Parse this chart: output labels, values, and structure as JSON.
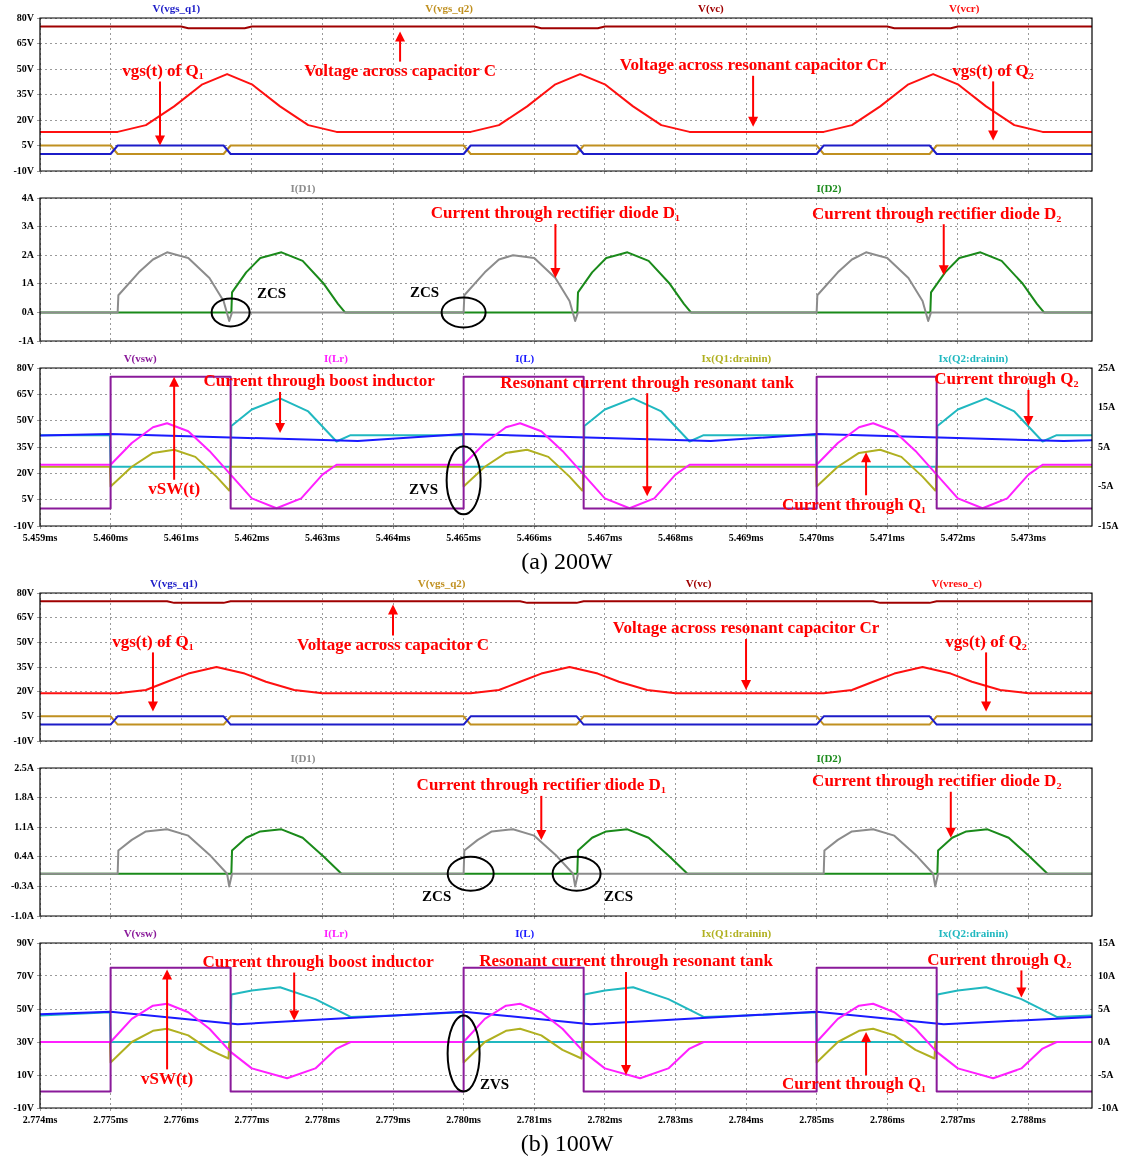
{
  "chart_data": [
    {
      "type": "line",
      "legend": "top",
      "grid": true,
      "tick_labels": "y",
      "xlim": [
        5.459,
        5.4739
      ],
      "xticks": [
        5.459,
        5.46,
        5.461,
        5.462,
        5.463,
        5.464,
        5.465,
        5.466,
        5.467,
        5.468,
        5.469,
        5.47,
        5.471,
        5.472,
        5.473
      ],
      "ylim": [
        -10,
        80
      ],
      "yticks": [
        {
          "value": -10,
          "label": "-10V"
        },
        {
          "value": 5,
          "label": "5V"
        },
        {
          "value": 20,
          "label": "20V"
        },
        {
          "value": 35,
          "label": "35V"
        },
        {
          "value": 50,
          "label": "50V"
        },
        {
          "value": 65,
          "label": "65V"
        },
        {
          "value": 80,
          "label": "80V"
        }
      ],
      "series": [
        {
          "name": "V(vgs_q1)",
          "color": "#1c1cc8",
          "x": [
            5.459,
            5.46,
            5.4601,
            5.4616,
            5.4617,
            5.465,
            5.4651,
            5.4666,
            5.4667,
            5.47,
            5.4701,
            5.4716,
            5.4717,
            5.4739
          ],
          "values": [
            0,
            0,
            5,
            5,
            0,
            0,
            5,
            5,
            0,
            0,
            5,
            5,
            0,
            0
          ]
        },
        {
          "name": "V(vgs_q2)",
          "color": "#c09020",
          "x": [
            5.459,
            5.46,
            5.4601,
            5.4616,
            5.4617,
            5.465,
            5.4651,
            5.4666,
            5.4667,
            5.47,
            5.4701,
            5.4716,
            5.4717,
            5.4739
          ],
          "values": [
            5,
            5,
            0,
            0,
            5,
            5,
            0,
            0,
            5,
            5,
            0,
            0,
            5,
            5
          ]
        },
        {
          "name": "V(vc)",
          "color": "#a00000",
          "x": [
            5.459,
            5.461,
            5.4611,
            5.4619,
            5.462,
            5.466,
            5.4661,
            5.4669,
            5.467,
            5.471,
            5.4711,
            5.4719,
            5.472,
            5.4739
          ],
          "values": [
            75,
            75,
            74,
            74,
            75,
            75,
            74,
            74,
            75,
            75,
            74,
            74,
            75,
            75
          ]
        },
        {
          "name": "V(vcr)",
          "color": "#ff1010",
          "x": [
            5.459,
            5.4601,
            5.4605,
            5.4609,
            5.4613,
            5.46165,
            5.462,
            5.4624,
            5.4628,
            5.4632,
            5.4651,
            5.4655,
            5.4659,
            5.4663,
            5.46665,
            5.467,
            5.4674,
            5.4678,
            5.4682,
            5.4701,
            5.4705,
            5.4709,
            5.4713,
            5.47165,
            5.472,
            5.4724,
            5.4728,
            5.4732,
            5.4739
          ],
          "values": [
            13,
            13,
            17,
            28,
            41,
            47,
            41,
            28,
            17,
            13,
            13,
            17,
            28,
            41,
            47,
            41,
            28,
            17,
            13,
            13,
            17,
            28,
            41,
            47,
            41,
            28,
            17,
            13,
            13
          ]
        }
      ],
      "annotations": [
        {
          "text": "vgs(t) of Q₁",
          "x": 5.4607,
          "y": 5
        },
        {
          "text": "Voltage across capacitor C",
          "x": 5.4641,
          "y": 72
        },
        {
          "text": "Voltage across resonant capacitor Cr",
          "x": 5.4691,
          "y": 16
        },
        {
          "text": "vgs(t) of Q₂",
          "x": 5.4725,
          "y": 8
        }
      ]
    },
    {
      "type": "line",
      "legend": "top",
      "grid": true,
      "tick_labels": "y",
      "xlim": [
        5.459,
        5.4739
      ],
      "xticks": [
        5.459,
        5.46,
        5.461,
        5.462,
        5.463,
        5.464,
        5.465,
        5.466,
        5.467,
        5.468,
        5.469,
        5.47,
        5.471,
        5.472,
        5.473
      ],
      "ylim": [
        -1,
        4
      ],
      "yticks": [
        {
          "value": -1,
          "label": "-1A"
        },
        {
          "value": 0,
          "label": "0A"
        },
        {
          "value": 1,
          "label": "1A"
        },
        {
          "value": 2,
          "label": "2A"
        },
        {
          "value": 3,
          "label": "3A"
        },
        {
          "value": 4,
          "label": "4A"
        }
      ],
      "series": [
        {
          "name": "I(D1)",
          "color": "#8c8c8c",
          "x": [
            5.459,
            5.4601,
            5.46011,
            5.4604,
            5.4606,
            5.4608,
            5.4611,
            5.4614,
            5.4616,
            5.46168,
            5.46172,
            5.465,
            5.46501,
            5.4653,
            5.4655,
            5.4657,
            5.466,
            5.4663,
            5.4665,
            5.46658,
            5.46662,
            5.47,
            5.47001,
            5.4703,
            5.4705,
            5.4707,
            5.471,
            5.4713,
            5.4715,
            5.47158,
            5.47162,
            5.4739
          ],
          "values": [
            0,
            0,
            0.6,
            1.4,
            1.85,
            2.1,
            1.9,
            1.2,
            0.4,
            -0.3,
            0,
            0,
            0.6,
            1.4,
            1.85,
            2,
            1.9,
            1.2,
            0.4,
            -0.3,
            0,
            0,
            0.6,
            1.4,
            1.85,
            2.1,
            1.9,
            1.2,
            0.4,
            -0.3,
            0,
            0
          ]
        },
        {
          "name": "I(D2)",
          "color": "#1a8a1a",
          "x": [
            5.459,
            5.46171,
            5.46172,
            5.46192,
            5.46212,
            5.46242,
            5.46272,
            5.46302,
            5.46322,
            5.46332,
            5.46661,
            5.46662,
            5.46682,
            5.46702,
            5.46732,
            5.46762,
            5.46792,
            5.46812,
            5.46822,
            5.47161,
            5.47162,
            5.47182,
            5.47202,
            5.47232,
            5.47262,
            5.47292,
            5.47312,
            5.47322,
            5.4739
          ],
          "values": [
            0,
            0,
            0.7,
            1.4,
            1.9,
            2.1,
            1.8,
            1,
            0.3,
            0,
            0,
            0.7,
            1.4,
            1.9,
            2.1,
            1.8,
            1,
            0.3,
            0,
            0,
            0.7,
            1.4,
            1.9,
            2.1,
            1.8,
            1,
            0.3,
            0,
            0
          ]
        }
      ],
      "annotations": [
        {
          "text": "Current through rectifier diode D₁",
          "x": 5.4663,
          "y": 1.2
        },
        {
          "text": "Current through rectifier diode D₂",
          "x": 5.4718,
          "y": 1.3
        },
        {
          "text": "ZCS",
          "x": 5.4617,
          "y": 0
        },
        {
          "text": "ZCS",
          "x": 5.465,
          "y": 0
        }
      ]
    },
    {
      "type": "line",
      "legend": "top",
      "grid": true,
      "xlim": [
        5.459,
        5.4739
      ],
      "xticks": [
        {
          "value": 5.459,
          "label": "5.459ms"
        },
        {
          "value": 5.46,
          "label": "5.460ms"
        },
        {
          "value": 5.461,
          "label": "5.461ms"
        },
        {
          "value": 5.462,
          "label": "5.462ms"
        },
        {
          "value": 5.463,
          "label": "5.463ms"
        },
        {
          "value": 5.464,
          "label": "5.464ms"
        },
        {
          "value": 5.465,
          "label": "5.465ms"
        },
        {
          "value": 5.466,
          "label": "5.466ms"
        },
        {
          "value": 5.467,
          "label": "5.467ms"
        },
        {
          "value": 5.468,
          "label": "5.468ms"
        },
        {
          "value": 5.469,
          "label": "5.469ms"
        },
        {
          "value": 5.47,
          "label": "5.470ms"
        },
        {
          "value": 5.471,
          "label": "5.471ms"
        },
        {
          "value": 5.472,
          "label": "5.472ms"
        },
        {
          "value": 5.473,
          "label": "5.473ms"
        }
      ],
      "ylim": [
        -10,
        80
      ],
      "yticks": [
        {
          "value": -10,
          "label": "-10V"
        },
        {
          "value": 5,
          "label": "5V"
        },
        {
          "value": 20,
          "label": "20V"
        },
        {
          "value": 35,
          "label": "35V"
        },
        {
          "value": 50,
          "label": "50V"
        },
        {
          "value": 65,
          "label": "65V"
        },
        {
          "value": 80,
          "label": "80V"
        }
      ],
      "y2lim": [
        -15,
        25
      ],
      "y2ticks": [
        {
          "value": -15,
          "label": "-15A"
        },
        {
          "value": -5,
          "label": "-5A"
        },
        {
          "value": 5,
          "label": "5A"
        },
        {
          "value": 15,
          "label": "15A"
        },
        {
          "value": 25,
          "label": "25A"
        }
      ],
      "series": [
        {
          "name": "V(vsw)",
          "color": "#8a1a9a",
          "x": [
            5.459,
            5.46,
            5.46,
            5.4617,
            5.4617,
            5.465,
            5.465,
            5.4667,
            5.4667,
            5.47,
            5.47,
            5.4717,
            5.4717,
            5.4739
          ],
          "values": [
            0,
            0,
            75,
            75,
            0,
            0,
            75,
            75,
            0,
            0,
            75,
            75,
            0,
            0
          ]
        },
        {
          "name": "I(Lr)",
          "color": "#ff20ff",
          "axis": "y2",
          "x": [
            5.459,
            5.46,
            5.4603,
            5.4606,
            5.4608,
            5.4611,
            5.4614,
            5.4617,
            5.462,
            5.46235,
            5.4627,
            5.463,
            5.4632,
            5.465,
            5.4653,
            5.4656,
            5.4658,
            5.4661,
            5.4664,
            5.4667,
            5.467,
            5.46735,
            5.4677,
            5.468,
            5.4682,
            5.47,
            5.4703,
            5.4706,
            5.4708,
            5.4711,
            5.4714,
            5.4717,
            5.472,
            5.47235,
            5.4727,
            5.473,
            5.4732,
            5.4739
          ],
          "values": [
            0.5,
            0.5,
            6,
            10,
            11,
            9,
            4,
            -2,
            -8,
            -10.5,
            -8,
            -2,
            0.5,
            0.5,
            6,
            10,
            11,
            9,
            4,
            -2,
            -8,
            -10.5,
            -8,
            -2,
            0.5,
            0.5,
            6,
            10,
            11,
            9,
            4,
            -2,
            -8,
            -10.5,
            -8,
            -2,
            0.5,
            0.5
          ]
        },
        {
          "name": "I(L)",
          "color": "#1a1aff",
          "axis": "y2",
          "x": [
            5.459,
            5.46,
            5.4635,
            5.465,
            5.4685,
            5.47,
            5.4735,
            5.4739
          ],
          "values": [
            7.9,
            8.3,
            6.5,
            8.3,
            6.5,
            8.3,
            6.5,
            6.7
          ]
        },
        {
          "name": "Ix(Q1:drainin)",
          "color": "#b0b020",
          "axis": "y2",
          "x": [
            5.459,
            5.45999,
            5.46,
            5.4603,
            5.4606,
            5.4609,
            5.4612,
            5.4615,
            5.46168,
            5.46169,
            5.46499,
            5.465,
            5.4653,
            5.4656,
            5.4659,
            5.4662,
            5.4665,
            5.46668,
            5.46669,
            5.46999,
            5.47,
            5.4703,
            5.4706,
            5.4709,
            5.4712,
            5.4715,
            5.47168,
            5.47169,
            5.4739
          ],
          "values": [
            0,
            0,
            -5,
            0,
            3.5,
            4.3,
            2.5,
            -2.5,
            -6,
            0,
            0,
            -5,
            0,
            3.5,
            4.3,
            2.5,
            -2.5,
            -6,
            0,
            0,
            -5,
            0,
            3.5,
            4.3,
            2.5,
            -2.5,
            -6,
            0,
            0
          ]
        },
        {
          "name": "Ix(Q2:drainin)",
          "color": "#20b8c0",
          "axis": "y2",
          "x": [
            5.459,
            5.45999,
            5.46,
            5.4617,
            5.46171,
            5.462,
            5.4624,
            5.4628,
            5.4632,
            5.4634,
            5.46499,
            5.465,
            5.4667,
            5.46671,
            5.467,
            5.4674,
            5.4678,
            5.4682,
            5.4684,
            5.46999,
            5.47,
            5.4717,
            5.47171,
            5.472,
            5.4724,
            5.4728,
            5.4732,
            5.4734,
            5.4739
          ],
          "values": [
            8,
            8,
            0,
            0,
            10.3,
            14.5,
            17.3,
            14,
            6.4,
            8,
            8,
            0,
            0,
            10.3,
            14.5,
            17.3,
            14,
            6.4,
            8,
            8,
            0,
            0,
            10.3,
            14.5,
            17.3,
            14,
            6.4,
            8,
            8
          ]
        }
      ],
      "annotations": [
        {
          "text": "Current through boost inductor",
          "x": 5.4624,
          "y": 43
        },
        {
          "text": "Resonant current through resonant tank",
          "x": 5.4676,
          "y": 7
        },
        {
          "text": "Current through Q₂",
          "x": 5.473,
          "y": 47
        },
        {
          "text": "vSW(t)",
          "x": 5.4609,
          "y": 75
        },
        {
          "text": "Current through Q₁",
          "x": 5.4707,
          "y": 32
        },
        {
          "text": "ZVS",
          "x": 5.465,
          "y": 16
        },
        "(a) 200W"
      ]
    },
    {
      "type": "line",
      "legend": "top",
      "grid": true,
      "tick_labels": "y",
      "xlim": [
        2.774,
        2.7889
      ],
      "xticks": [
        2.774,
        2.775,
        2.776,
        2.777,
        2.778,
        2.779,
        2.78,
        2.781,
        2.782,
        2.783,
        2.784,
        2.785,
        2.786,
        2.787,
        2.788
      ],
      "ylim": [
        -10,
        80
      ],
      "yticks": [
        {
          "value": -10,
          "label": "-10V"
        },
        {
          "value": 5,
          "label": "5V"
        },
        {
          "value": 20,
          "label": "20V"
        },
        {
          "value": 35,
          "label": "35V"
        },
        {
          "value": 50,
          "label": "50V"
        },
        {
          "value": 65,
          "label": "65V"
        },
        {
          "value": 80,
          "label": "80V"
        }
      ],
      "series": [
        {
          "name": "V(vgs_q1)",
          "color": "#1c1cc8",
          "x": [
            2.774,
            2.775,
            2.7751,
            2.7766,
            2.7767,
            2.78,
            2.7801,
            2.7816,
            2.7817,
            2.785,
            2.7851,
            2.7866,
            2.7867,
            2.7889
          ],
          "values": [
            0,
            0,
            5,
            5,
            0,
            0,
            5,
            5,
            0,
            0,
            5,
            5,
            0,
            0
          ]
        },
        {
          "name": "V(vgs_q2)",
          "color": "#c09020",
          "x": [
            2.774,
            2.775,
            2.7751,
            2.7766,
            2.7767,
            2.78,
            2.7801,
            2.7816,
            2.7817,
            2.785,
            2.7851,
            2.7866,
            2.7867,
            2.7889
          ],
          "values": [
            5,
            5,
            0,
            0,
            5,
            5,
            0,
            0,
            5,
            5,
            0,
            0,
            5,
            5
          ]
        },
        {
          "name": "V(vc)",
          "color": "#a00000",
          "x": [
            2.774,
            2.7758,
            2.7759,
            2.7766,
            2.7767,
            2.7808,
            2.7809,
            2.7816,
            2.7817,
            2.7858,
            2.7859,
            2.7866,
            2.7867,
            2.7889
          ],
          "values": [
            75,
            75,
            74,
            74,
            75,
            75,
            74,
            74,
            75,
            75,
            74,
            74,
            75,
            75
          ]
        },
        {
          "name": "V(vreso_c)",
          "color": "#ff1010",
          "x": [
            2.774,
            2.7751,
            2.7755,
            2.7758,
            2.7761,
            2.7765,
            2.7769,
            2.7772,
            2.7776,
            2.778,
            2.7801,
            2.7805,
            2.7808,
            2.7811,
            2.7815,
            2.7819,
            2.7822,
            2.7826,
            2.783,
            2.7851,
            2.7855,
            2.7858,
            2.7861,
            2.7865,
            2.7869,
            2.7872,
            2.7876,
            2.788,
            2.7889
          ],
          "values": [
            19,
            19,
            21,
            26,
            31,
            35,
            31,
            26,
            21,
            19,
            19,
            21,
            26,
            31,
            35,
            31,
            26,
            21,
            19,
            19,
            21,
            26,
            31,
            35,
            31,
            26,
            21,
            19,
            19
          ]
        }
      ],
      "annotations": [
        {
          "text": "vgs(t) of Q₁",
          "x": 2.7756,
          "y": 8
        },
        {
          "text": "Voltage across capacitor C",
          "x": 2.779,
          "y": 73
        },
        {
          "text": "Voltage across resonant capacitor Cr",
          "x": 2.784,
          "y": 21
        },
        {
          "text": "vgs(t) of Q₂",
          "x": 2.7874,
          "y": 8
        }
      ]
    },
    {
      "type": "line",
      "legend": "top",
      "grid": true,
      "tick_labels": "y",
      "xlim": [
        2.774,
        2.7889
      ],
      "xticks": [
        2.774,
        2.775,
        2.776,
        2.777,
        2.778,
        2.779,
        2.78,
        2.781,
        2.782,
        2.783,
        2.784,
        2.785,
        2.786,
        2.787,
        2.788
      ],
      "ylim": [
        -1,
        2.5
      ],
      "yticks": [
        {
          "value": -1,
          "label": "-1.0A"
        },
        {
          "value": -0.3,
          "label": "-0.3A"
        },
        {
          "value": 0.4,
          "label": "0.4A"
        },
        {
          "value": 1.1,
          "label": "1.1A"
        },
        {
          "value": 1.8,
          "label": "1.8A"
        },
        {
          "value": 2.5,
          "label": "2.5A"
        }
      ],
      "series": [
        {
          "name": "I(D1)",
          "color": "#8c8c8c",
          "x": [
            2.774,
            2.7751,
            2.77511,
            2.7753,
            2.7755,
            2.7758,
            2.7761,
            2.7764,
            2.77665,
            2.77668,
            2.77672,
            2.78,
            2.78001,
            2.7802,
            2.7804,
            2.7807,
            2.781,
            2.7813,
            2.78155,
            2.78158,
            2.78162,
            2.7851,
            2.78511,
            2.7853,
            2.7855,
            2.7858,
            2.7861,
            2.7864,
            2.78665,
            2.78668,
            2.78672,
            2.7889
          ],
          "values": [
            0,
            0,
            0.55,
            0.8,
            1,
            1.05,
            0.9,
            0.45,
            0,
            -0.3,
            0,
            0,
            0.55,
            0.8,
            1,
            1.05,
            0.9,
            0.45,
            0,
            -0.3,
            0,
            0,
            0.55,
            0.8,
            1,
            1.05,
            0.9,
            0.45,
            0,
            -0.3,
            0,
            0
          ]
        },
        {
          "name": "I(D2)",
          "color": "#1a8a1a",
          "x": [
            2.774,
            2.77671,
            2.77672,
            2.77692,
            2.77712,
            2.77742,
            2.77772,
            2.77802,
            2.77827,
            2.78161,
            2.78162,
            2.78182,
            2.78202,
            2.78232,
            2.78262,
            2.78292,
            2.78317,
            2.78671,
            2.78672,
            2.78692,
            2.78712,
            2.78742,
            2.78772,
            2.78802,
            2.78827,
            2.7889
          ],
          "values": [
            0,
            0,
            0.55,
            0.85,
            1,
            1.05,
            0.85,
            0.4,
            0,
            0,
            0.55,
            0.85,
            1,
            1.05,
            0.85,
            0.4,
            0,
            0,
            0.55,
            0.85,
            1,
            1.05,
            0.85,
            0.4,
            0,
            0
          ]
        }
      ],
      "annotations": [
        {
          "text": "Current through rectifier diode D₁",
          "x": 2.7811,
          "y": 0.8
        },
        {
          "text": "Current through rectifier diode D₂",
          "x": 2.7869,
          "y": 0.85
        },
        {
          "text": "ZCS",
          "x": 2.7801,
          "y": 0
        },
        {
          "text": "ZCS",
          "x": 2.7816,
          "y": 0
        }
      ]
    },
    {
      "type": "line",
      "legend": "top",
      "grid": true,
      "xlim": [
        2.774,
        2.7889
      ],
      "xticks": [
        {
          "value": 2.774,
          "label": "2.774ms"
        },
        {
          "value": 2.775,
          "label": "2.775ms"
        },
        {
          "value": 2.776,
          "label": "2.776ms"
        },
        {
          "value": 2.777,
          "label": "2.777ms"
        },
        {
          "value": 2.778,
          "label": "2.778ms"
        },
        {
          "value": 2.779,
          "label": "2.779ms"
        },
        {
          "value": 2.78,
          "label": "2.780ms"
        },
        {
          "value": 2.781,
          "label": "2.781ms"
        },
        {
          "value": 2.782,
          "label": "2.782ms"
        },
        {
          "value": 2.783,
          "label": "2.783ms"
        },
        {
          "value": 2.784,
          "label": "2.784ms"
        },
        {
          "value": 2.785,
          "label": "2.785ms"
        },
        {
          "value": 2.786,
          "label": "2.786ms"
        },
        {
          "value": 2.787,
          "label": "2.787ms"
        },
        {
          "value": 2.788,
          "label": "2.788ms"
        }
      ],
      "ylim": [
        -10,
        90
      ],
      "yticks": [
        {
          "value": -10,
          "label": "-10V"
        },
        {
          "value": 10,
          "label": "10V"
        },
        {
          "value": 30,
          "label": "30V"
        },
        {
          "value": 50,
          "label": "50V"
        },
        {
          "value": 70,
          "label": "70V"
        },
        {
          "value": 90,
          "label": "90V"
        }
      ],
      "y2lim": [
        -10,
        15
      ],
      "y2ticks": [
        {
          "value": -10,
          "label": "-10A"
        },
        {
          "value": -5,
          "label": "-5A"
        },
        {
          "value": 0,
          "label": "0A"
        },
        {
          "value": 5,
          "label": "5A"
        },
        {
          "value": 10,
          "label": "10A"
        },
        {
          "value": 15,
          "label": "15A"
        }
      ],
      "series": [
        {
          "name": "V(vsw)",
          "color": "#8a1a9a",
          "x": [
            2.774,
            2.775,
            2.775,
            2.7767,
            2.7767,
            2.78,
            2.78,
            2.7817,
            2.7817,
            2.785,
            2.785,
            2.7867,
            2.7867,
            2.7889
          ],
          "values": [
            0,
            0,
            75,
            75,
            0,
            0,
            75,
            75,
            0,
            0,
            75,
            75,
            0,
            0
          ]
        },
        {
          "name": "I(Lr)",
          "color": "#ff20ff",
          "axis": "y2",
          "x": [
            2.774,
            2.775,
            2.7753,
            2.7756,
            2.7758,
            2.7761,
            2.7764,
            2.7767,
            2.777,
            2.7775,
            2.7779,
            2.7782,
            2.7784,
            2.78,
            2.7803,
            2.7806,
            2.7808,
            2.7811,
            2.7814,
            2.7817,
            2.782,
            2.7825,
            2.7829,
            2.7832,
            2.7834,
            2.785,
            2.7853,
            2.7856,
            2.7858,
            2.7861,
            2.7864,
            2.7867,
            2.787,
            2.7875,
            2.7879,
            2.7882,
            2.7884,
            2.7889
          ],
          "values": [
            0,
            0,
            3.5,
            5.5,
            5.8,
            4.5,
            2,
            -1.5,
            -4,
            -5.5,
            -4,
            -1,
            0,
            0,
            3.5,
            5.5,
            5.8,
            4.5,
            2,
            -1.5,
            -4,
            -5.5,
            -4,
            -1,
            0,
            0,
            3.5,
            5.5,
            5.8,
            4.5,
            2,
            -1.5,
            -4,
            -5.5,
            -4,
            -1,
            0,
            0
          ]
        },
        {
          "name": "I(L)",
          "color": "#1a1aff",
          "axis": "y2",
          "x": [
            2.774,
            2.775,
            2.7768,
            2.78,
            2.7818,
            2.785,
            2.7868,
            2.7889
          ],
          "values": [
            4.2,
            4.6,
            2.7,
            4.6,
            2.7,
            4.6,
            2.7,
            3.8
          ]
        },
        {
          "name": "Ix(Q1:drainin)",
          "color": "#b0b020",
          "axis": "y2",
          "x": [
            2.774,
            2.77499,
            2.775,
            2.7753,
            2.7756,
            2.7758,
            2.7761,
            2.7764,
            2.77667,
            2.77668,
            2.77999,
            2.78,
            2.7803,
            2.7806,
            2.7808,
            2.7811,
            2.7814,
            2.78167,
            2.78168,
            2.78499,
            2.785,
            2.7853,
            2.7856,
            2.7858,
            2.7861,
            2.7864,
            2.78667,
            2.78668,
            2.7889
          ],
          "values": [
            0,
            0,
            -3.1,
            0,
            1.7,
            2,
            1,
            -1.2,
            -2.5,
            0,
            0,
            -3.1,
            0,
            1.7,
            2,
            1,
            -1.2,
            -2.5,
            0,
            0,
            -3.1,
            0,
            1.7,
            2,
            1,
            -1.2,
            -2.5,
            0,
            0
          ]
        },
        {
          "name": "Ix(Q2:drainin)",
          "color": "#20b8c0",
          "axis": "y2",
          "x": [
            2.774,
            2.77499,
            2.775,
            2.7767,
            2.77671,
            2.777,
            2.7774,
            2.7779,
            2.7784,
            2.779,
            2.77999,
            2.78,
            2.7817,
            2.78171,
            2.782,
            2.7824,
            2.7829,
            2.7834,
            2.784,
            2.78499,
            2.785,
            2.7867,
            2.78671,
            2.787,
            2.7874,
            2.7879,
            2.7884,
            2.7889
          ],
          "values": [
            4,
            4.5,
            0,
            0,
            7.2,
            7.8,
            8.3,
            6.5,
            3.8,
            4,
            4.5,
            0,
            0,
            7.2,
            7.8,
            8.3,
            6.5,
            3.8,
            4,
            4.5,
            0,
            0,
            7.2,
            7.8,
            8.3,
            6.5,
            3.8,
            4
          ]
        }
      ],
      "annotations": [
        {
          "text": "Current through boost inductor",
          "x": 2.7776,
          "y": 43
        },
        {
          "text": "Resonant current through resonant tank",
          "x": 2.7823,
          "y": 10
        },
        {
          "text": "Current through Q₂",
          "x": 2.7879,
          "y": 57
        },
        {
          "text": "vSW(t)",
          "x": 2.7758,
          "y": 74
        },
        {
          "text": "Current through Q₁",
          "x": 2.7857,
          "y": 36
        },
        {
          "text": "ZVS",
          "x": 2.78,
          "y": 23
        },
        "(b) 100W"
      ]
    }
  ]
}
